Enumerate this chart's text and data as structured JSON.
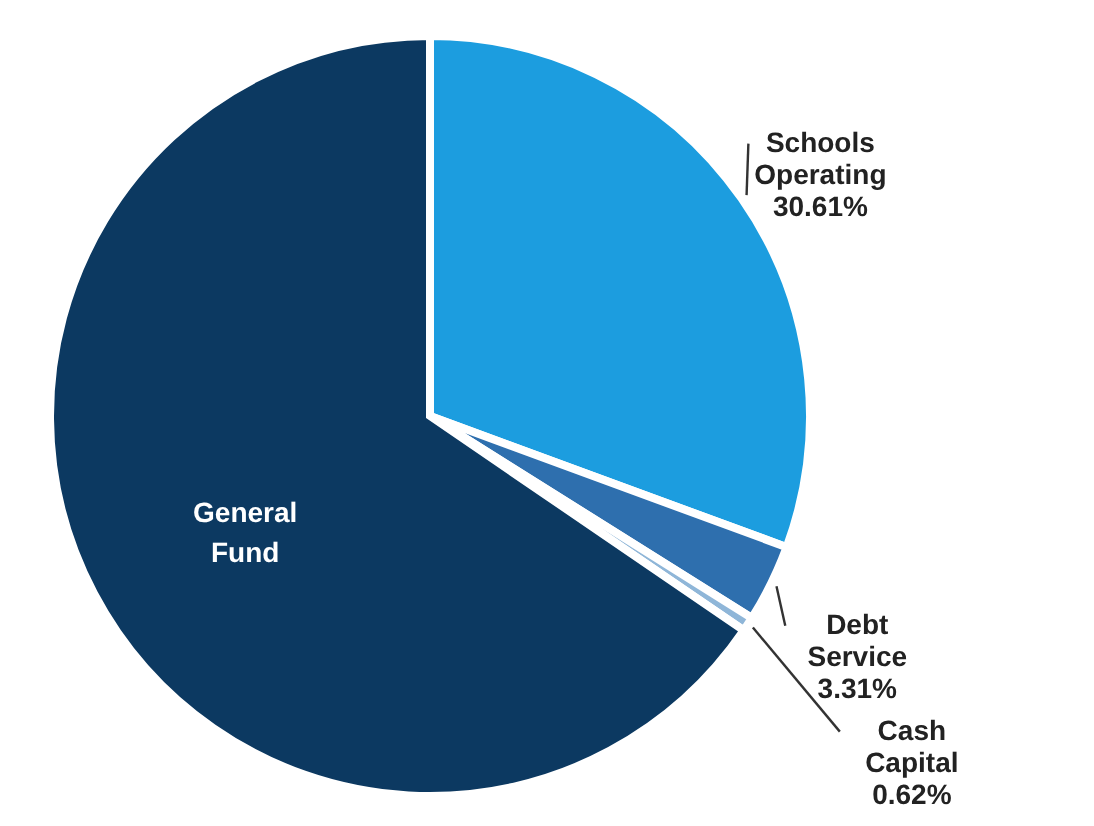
{
  "chart_data": {
    "type": "pie",
    "categories": [
      "Schools Operating",
      "Debt Service",
      "Cash Capital",
      "General Fund"
    ],
    "values": [
      30.61,
      3.31,
      0.62,
      65.46
    ],
    "colors": [
      "#1c9ddf",
      "#2e6fae",
      "#8fb6d8",
      "#0c3961"
    ],
    "value_labels": [
      "30.61%",
      "3.31%",
      "0.62%",
      null
    ]
  }
}
